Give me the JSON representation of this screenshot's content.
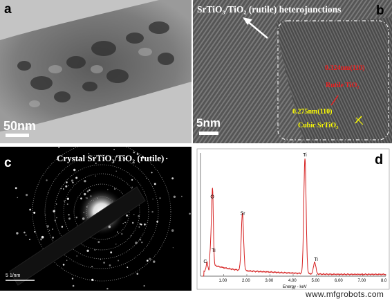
{
  "panel_a": {
    "label": "a",
    "scale_text": "50nm"
  },
  "panel_b": {
    "label": "b",
    "header": "SrTiO₃/TiO₂ (rutile) heterojunctions",
    "scale_text": "5nm",
    "annotations": {
      "rutile_spacing": "0.324nm(110)",
      "rutile_phase": "Rutile TiO₂",
      "cubic_spacing": "0.275nm(110)",
      "cubic_phase": "Cubic SrTiO₃"
    }
  },
  "panel_c": {
    "label": "c",
    "header": "Crystal  SrTiO₃/TiO₂ (rutile)",
    "scale_text": "5 1/nm"
  },
  "panel_d": {
    "label": "d"
  },
  "chart_data": {
    "type": "line",
    "title": "",
    "xlabel": "Energy - keV",
    "ylabel": "",
    "xlim": [
      0,
      8.0
    ],
    "ylim": [
      0,
      100
    ],
    "x_ticks": [
      "1.00",
      "2.00",
      "3.00",
      "4.00",
      "5.00",
      "6.00",
      "7.00",
      "8.0"
    ],
    "peaks": [
      {
        "label": "C",
        "x": 0.28,
        "y": 8
      },
      {
        "label": "O",
        "x": 0.52,
        "y": 62
      },
      {
        "label": "Ti",
        "x": 0.45,
        "y": 18
      },
      {
        "label": "Sr",
        "x": 1.81,
        "y": 48
      },
      {
        "label": "Ti",
        "x": 4.51,
        "y": 97
      },
      {
        "label": "Ti",
        "x": 4.93,
        "y": 10
      }
    ],
    "line_color": "#d62020"
  },
  "watermark": "www.mfgrobots.com"
}
